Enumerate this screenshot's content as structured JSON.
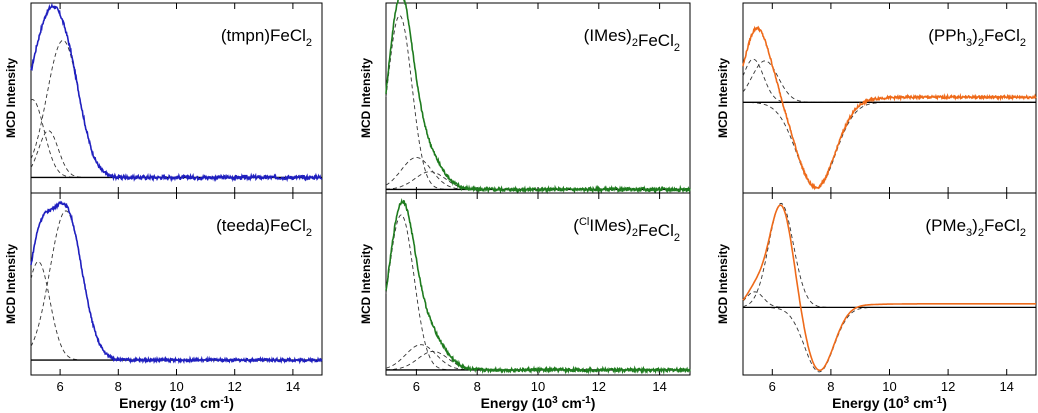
{
  "chart_data": [
    {
      "type": "line",
      "panel_label": {
        "pre": "(tmpn)FeCl",
        "sub": "2",
        "post": ""
      },
      "ylabel": "MCD Intensity",
      "xlim": [
        5,
        15
      ],
      "ylim": [
        -0.1,
        1.12
      ],
      "baseline": 0,
      "color": "#1f1fbf",
      "gaussians": [
        {
          "center": 5.05,
          "amp": 0.5,
          "width": 0.4
        },
        {
          "center": 5.6,
          "amp": 0.3,
          "width": 0.34
        },
        {
          "center": 6.1,
          "amp": 0.88,
          "width": 0.55
        }
      ],
      "noise": 0.012
    },
    {
      "type": "line",
      "panel_label": {
        "pre": "(IMes)",
        "sub": "2",
        "post": "FeCl2"
      },
      "ylabel": "MCD Intensity",
      "xlim": [
        5,
        15
      ],
      "ylim": [
        -0.02,
        1.05
      ],
      "baseline": 0,
      "color": "#1e7b1e",
      "gaussians": [
        {
          "center": 5.45,
          "amp": 0.98,
          "width": 0.4
        },
        {
          "center": 6.0,
          "amp": 0.18,
          "width": 0.5
        },
        {
          "center": 6.45,
          "amp": 0.1,
          "width": 0.5
        }
      ],
      "noise": 0.01
    },
    {
      "type": "line",
      "panel_label": {
        "pre": "(PPh",
        "sub": "3",
        "post": ")2FeCl2"
      },
      "ylabel": "MCD Intensity",
      "xlim": [
        5,
        15
      ],
      "ylim": [
        -1.05,
        1.15
      ],
      "baseline": 0,
      "color": "#ee6a1a",
      "gaussians": [
        {
          "center": 5.35,
          "amp": 0.5,
          "width": 0.35
        },
        {
          "center": 5.75,
          "amp": 0.48,
          "width": 0.45
        },
        {
          "center": 7.5,
          "amp": -1.0,
          "width": 0.65
        }
      ],
      "offset": 0.06,
      "noise": 0.015
    },
    {
      "type": "line",
      "panel_label": {
        "pre": "(teeda)FeCl",
        "sub": "2",
        "post": ""
      },
      "xlabel": "Energy (10³ cm⁻¹)",
      "ylabel": "MCD Intensity",
      "xlim": [
        5,
        15
      ],
      "ylim": [
        -0.1,
        1.12
      ],
      "baseline": 0,
      "color": "#1f1fbf",
      "gaussians": [
        {
          "center": 5.25,
          "amp": 0.66,
          "width": 0.4
        },
        {
          "center": 6.2,
          "amp": 1.0,
          "width": 0.55
        }
      ],
      "noise": 0.01,
      "tick_labels": [
        "6",
        "8",
        "10",
        "12",
        "14"
      ]
    },
    {
      "type": "line",
      "panel_label": {
        "pre": "(",
        "sup": "Cl",
        "mid": "IMes)",
        "sub": "2",
        "post": "FeCl2"
      },
      "xlabel": "Energy (10³ cm⁻¹)",
      "ylabel": "MCD Intensity",
      "xlim": [
        5,
        15
      ],
      "ylim": [
        -0.03,
        1.05
      ],
      "baseline": 0,
      "color": "#1e7b1e",
      "gaussians": [
        {
          "center": 5.5,
          "amp": 0.92,
          "width": 0.42
        },
        {
          "center": 6.15,
          "amp": 0.15,
          "width": 0.5
        },
        {
          "center": 6.55,
          "amp": 0.11,
          "width": 0.5
        }
      ],
      "noise": 0.01,
      "tick_labels": [
        "6",
        "8",
        "10",
        "12",
        "14"
      ]
    },
    {
      "type": "line",
      "panel_label": {
        "pre": "(PMe",
        "sub": "3",
        "post": ")2FeCl2"
      },
      "xlabel": "Energy (10³ cm⁻¹)",
      "ylabel": "MCD Intensity",
      "xlim": [
        5,
        15
      ],
      "ylim": [
        -0.65,
        1.1
      ],
      "baseline": 0,
      "color": "#ee6a1a",
      "gaussians": [
        {
          "center": 5.4,
          "amp": 0.15,
          "width": 0.3
        },
        {
          "center": 6.3,
          "amp": 1.0,
          "width": 0.42
        },
        {
          "center": 7.6,
          "amp": -0.62,
          "width": 0.5
        }
      ],
      "offset": 0.035,
      "noise": 0.0,
      "tick_labels": [
        "6",
        "8",
        "10",
        "12",
        "14"
      ]
    }
  ]
}
